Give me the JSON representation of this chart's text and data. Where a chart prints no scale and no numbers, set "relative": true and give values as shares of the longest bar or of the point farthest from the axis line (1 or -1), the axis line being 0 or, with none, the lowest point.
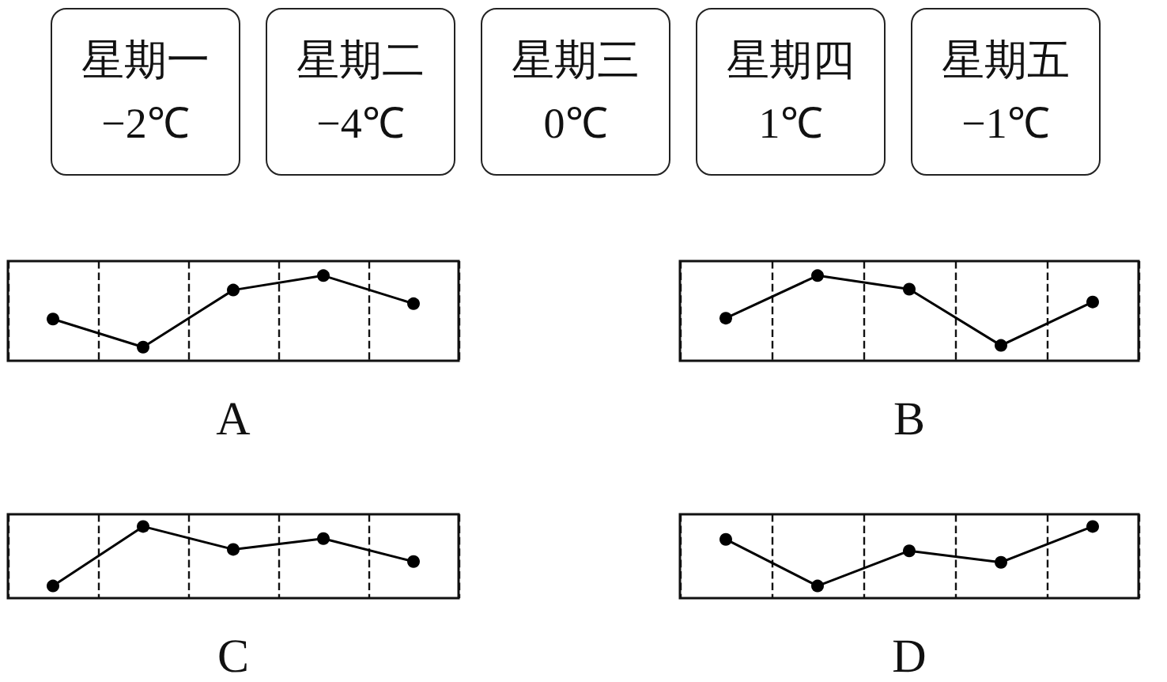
{
  "chart_data": [
    {
      "type": "other",
      "annotations": [
        "星期一\n−2℃",
        "星期二\n−4℃",
        "星期三\n0℃",
        "星期四\n1℃",
        "星期五\n−1℃"
      ]
    },
    {
      "type": "line",
      "xlabel": "A",
      "categories": [
        null,
        null,
        null,
        null,
        null
      ],
      "relative": true,
      "color": "#000000",
      "marker": "circle",
      "line_style": "solid",
      "grid": "x",
      "values": [
        0.49,
        0.16,
        0.83,
        1,
        0.67
      ]
    },
    {
      "type": "line",
      "xlabel": "B",
      "categories": [
        null,
        null,
        null,
        null,
        null
      ],
      "relative": true,
      "color": "#000000",
      "marker": "circle",
      "line_style": "solid",
      "grid": "x",
      "values": [
        0.5,
        1,
        0.84,
        0.18,
        0.69
      ]
    },
    {
      "type": "line",
      "xlabel": "C",
      "categories": [
        null,
        null,
        null,
        null,
        null
      ],
      "relative": true,
      "color": "#000000",
      "marker": "circle",
      "line_style": "solid",
      "grid": "x",
      "values": [
        0.17,
        1,
        0.68,
        0.83,
        0.51
      ]
    },
    {
      "type": "line",
      "xlabel": "D",
      "categories": [
        null,
        null,
        null,
        null,
        null
      ],
      "relative": true,
      "color": "#000000",
      "marker": "circle",
      "line_style": "solid",
      "grid": "x",
      "values": [
        0.82,
        0.17,
        0.66,
        0.5,
        1
      ]
    }
  ]
}
